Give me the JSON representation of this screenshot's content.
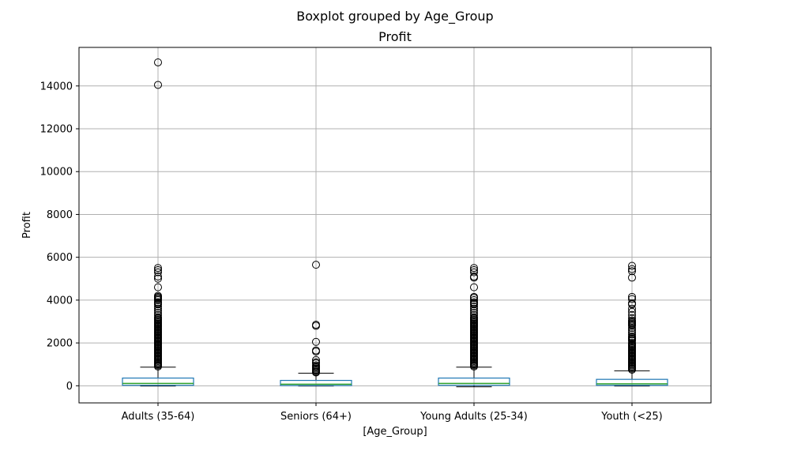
{
  "figure": {
    "suptitle": "Boxplot grouped by Age_Group",
    "title": "Profit",
    "xlabel": "[Age_Group]",
    "ylabel": "Profit"
  },
  "chart_data": {
    "type": "box",
    "title": "Profit",
    "suptitle": "Boxplot grouped by Age_Group",
    "xlabel": "[Age_Group]",
    "ylabel": "Profit",
    "ylim": [
      -800,
      15800
    ],
    "yticks": [
      0,
      2000,
      4000,
      6000,
      8000,
      10000,
      12000,
      14000
    ],
    "grid": true,
    "colors": {
      "box": "#1f77b4",
      "median": "#2ca02c",
      "whisker": "#000000",
      "grid": "#b0b0b0"
    },
    "groups": [
      {
        "category": "Adults (35-64)",
        "whisker_low": -10,
        "q1": 20,
        "median": 110,
        "q3": 360,
        "whisker_high": 870,
        "fliers": [
          15100,
          14050,
          5500,
          5400,
          5300,
          5100,
          5000,
          4600,
          4200,
          4150,
          4100,
          4050,
          4000,
          3900,
          3850,
          3800,
          3700,
          3600,
          3500,
          3400,
          3300,
          3200,
          3150,
          3100,
          3050,
          3000,
          2950,
          2900,
          2850,
          2800,
          2750,
          2700,
          2650,
          2600,
          2550,
          2500,
          2450,
          2400,
          2350,
          2300,
          2250,
          2200,
          2150,
          2100,
          2050,
          2000,
          1950,
          1900,
          1850,
          1800,
          1750,
          1700,
          1650,
          1600,
          1550,
          1500,
          1450,
          1400,
          1350,
          1300,
          1250,
          1200,
          1150,
          1100,
          1050,
          1000,
          950,
          900
        ]
      },
      {
        "category": "Seniors (64+)",
        "whisker_low": -10,
        "q1": 10,
        "median": 70,
        "q3": 250,
        "whisker_high": 590,
        "fliers": [
          5650,
          2850,
          2800,
          2050,
          1650,
          1600,
          1200,
          1100,
          1050,
          950,
          900,
          850,
          800,
          750,
          700,
          650,
          620
        ]
      },
      {
        "category": "Young Adults (25-34)",
        "whisker_low": -50,
        "q1": 20,
        "median": 110,
        "q3": 360,
        "whisker_high": 870,
        "fliers": [
          5500,
          5400,
          5300,
          5100,
          5050,
          4600,
          4150,
          4100,
          4000,
          3900,
          3850,
          3800,
          3700,
          3600,
          3500,
          3400,
          3300,
          3200,
          3150,
          3100,
          3050,
          3000,
          2950,
          2900,
          2850,
          2800,
          2750,
          2700,
          2650,
          2600,
          2550,
          2500,
          2450,
          2400,
          2350,
          2300,
          2250,
          2200,
          2150,
          2100,
          2050,
          2000,
          1950,
          1900,
          1850,
          1800,
          1750,
          1700,
          1650,
          1600,
          1550,
          1500,
          1450,
          1400,
          1350,
          1300,
          1250,
          1200,
          1150,
          1100,
          1050,
          1000,
          950,
          900
        ]
      },
      {
        "category": "Youth (<25)",
        "whisker_low": -10,
        "q1": 20,
        "median": 90,
        "q3": 300,
        "whisker_high": 700,
        "fliers": [
          5600,
          5450,
          5350,
          5050,
          4150,
          4050,
          3850,
          3800,
          3600,
          3450,
          3300,
          3150,
          3050,
          3000,
          2950,
          2900,
          2850,
          2800,
          2700,
          2600,
          2500,
          2400,
          2300,
          2250,
          2200,
          2150,
          2100,
          2000,
          1950,
          1900,
          1850,
          1800,
          1750,
          1700,
          1650,
          1600,
          1550,
          1500,
          1450,
          1400,
          1350,
          1300,
          1250,
          1200,
          1150,
          1100,
          1050,
          1000,
          950,
          900,
          850,
          800,
          750
        ]
      }
    ]
  }
}
